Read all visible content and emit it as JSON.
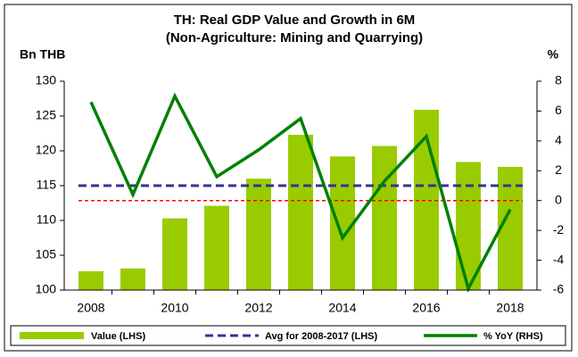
{
  "chart_data": {
    "type": "bar_line",
    "title": "TH: Real GDP Value and Growth in 6M",
    "subtitle": "(Non-Agriculture: Mining and Quarrying)",
    "y_label": "Bn THB",
    "y2_label": "%",
    "categories": [
      "2008",
      null,
      "2010",
      null,
      "2012",
      null,
      "2014",
      null,
      "2016",
      null,
      "2018"
    ],
    "series": [
      {
        "name": "Value (LHS)",
        "type": "bar",
        "color": "#99cc00",
        "values": [
          102.7,
          103.1,
          110.3,
          112.1,
          116.0,
          122.3,
          119.2,
          120.7,
          125.9,
          118.4,
          117.7
        ]
      },
      {
        "name": "Avg for 2008-2017 (LHS)",
        "type": "hline",
        "color": "#333399",
        "value": 115.0
      },
      {
        "name": "% YoY (RHS)",
        "type": "line",
        "axis": "y2",
        "color": "#008000",
        "values": [
          6.6,
          0.4,
          7.0,
          1.6,
          3.4,
          5.5,
          -2.5,
          1.3,
          4.3,
          -5.9,
          -0.6
        ]
      }
    ],
    "reference_line": {
      "axis": "y2",
      "value": 0,
      "color": "#ff0000"
    },
    "ylim": [
      100,
      130
    ],
    "yticks": [
      100,
      105,
      110,
      115,
      120,
      125,
      130
    ],
    "y2lim": [
      -6,
      8
    ],
    "y2ticks": [
      -6,
      -4,
      -2,
      0,
      2,
      4,
      6,
      8
    ],
    "legend": "bottom"
  }
}
